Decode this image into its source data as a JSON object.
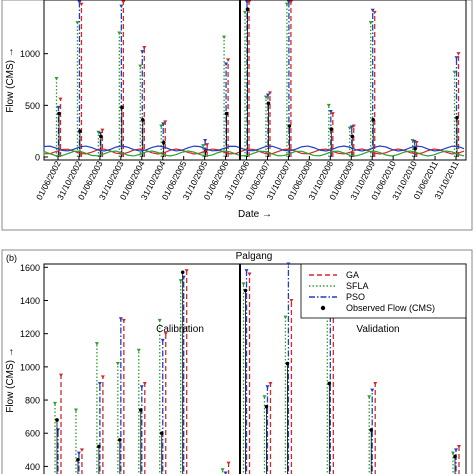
{
  "chart_data": [
    {
      "panel_label": "",
      "title": "",
      "type": "line",
      "xlabel": "Date",
      "ylabel": "Flow (CMS)",
      "arrow_glyph": "→",
      "ylim": [
        0,
        1500
      ],
      "yticks": [
        "0",
        "500",
        "1000"
      ],
      "xticks": [
        "01/06/2002",
        "31/10/2002",
        "01/06/2003",
        "31/10/2003",
        "01/06/2004",
        "31/10/2004",
        "01/06/2005",
        "31/10/2005",
        "01/06/2006",
        "31/10/2006",
        "01/06/2007",
        "31/10/2007",
        "01/06/2008",
        "31/10/2008",
        "01/06/2009",
        "31/10/2009",
        "01/06/2010",
        "31/10/2010",
        "01/06/2011",
        "31/10/2011"
      ],
      "divider_x": "31/10/2006",
      "grid": false,
      "regions": [],
      "legend": [],
      "peaks": [
        {
          "x": "01/06/2002",
          "GA": 560,
          "SFLA": 760,
          "PSO": 480,
          "Observed": 420
        },
        {
          "x": "31/10/2002",
          "GA": 1480,
          "SFLA": 1300,
          "PSO": 1500,
          "Observed": 250
        },
        {
          "x": "01/06/2003",
          "GA": 260,
          "SFLA": 240,
          "PSO": 230,
          "Observed": 200
        },
        {
          "x": "31/10/2003",
          "GA": 1500,
          "SFLA": 1200,
          "PSO": 1460,
          "Observed": 480
        },
        {
          "x": "01/06/2004",
          "GA": 1060,
          "SFLA": 880,
          "PSO": 1020,
          "Observed": 360
        },
        {
          "x": "31/10/2004",
          "GA": 340,
          "SFLA": 300,
          "PSO": 320,
          "Observed": 140
        },
        {
          "x": "31/10/2005",
          "GA": 120,
          "SFLA": 110,
          "PSO": 160,
          "Observed": 60
        },
        {
          "x": "01/06/2006",
          "GA": 940,
          "SFLA": 1160,
          "PSO": 900,
          "Observed": 420
        },
        {
          "x": "31/10/2006",
          "GA": 1500,
          "SFLA": 1400,
          "PSO": 1500,
          "Observed": 1430
        },
        {
          "x": "01/06/2007",
          "GA": 620,
          "SFLA": 580,
          "PSO": 600,
          "Observed": 520
        },
        {
          "x": "31/10/2007",
          "GA": 1500,
          "SFLA": 1480,
          "PSO": 1500,
          "Observed": 300
        },
        {
          "x": "31/10/2008",
          "GA": 420,
          "SFLA": 500,
          "PSO": 440,
          "Observed": 270
        },
        {
          "x": "01/06/2009",
          "GA": 300,
          "SFLA": 280,
          "PSO": 290,
          "Observed": 200
        },
        {
          "x": "31/10/2009",
          "GA": 1400,
          "SFLA": 1300,
          "PSO": 1420,
          "Observed": 360
        },
        {
          "x": "31/10/2010",
          "GA": 140,
          "SFLA": 160,
          "PSO": 150,
          "Observed": 80
        },
        {
          "x": "31/10/2011",
          "GA": 1000,
          "SFLA": 820,
          "PSO": 960,
          "Observed": 380
        }
      ]
    },
    {
      "panel_label": "(b)",
      "title": "Palgang",
      "type": "line",
      "xlabel": "",
      "ylabel": "Flow (CMS)",
      "arrow_glyph": "→",
      "ylim": [
        300,
        1620
      ],
      "yticks": [
        "400",
        "600",
        "800",
        "1000",
        "1200",
        "1400",
        "1600"
      ],
      "xticks": [],
      "divider_x": "31/10/2006",
      "grid": false,
      "regions": [
        "Calibration",
        "Validation"
      ],
      "legend": [
        {
          "name": "GA",
          "color": "#d62728",
          "style": "dash"
        },
        {
          "name": "SFLA",
          "color": "#2ca02c",
          "style": "dot"
        },
        {
          "name": "PSO",
          "color": "#1f3fbf",
          "style": "dashdot"
        },
        {
          "name": "Observed Flow (CMS)",
          "color": "#000000",
          "style": "marker"
        }
      ],
      "peaks": [
        {
          "x": "01/06/2002",
          "GA": 950,
          "SFLA": 780,
          "PSO": 620,
          "Observed": 680
        },
        {
          "x": "31/10/2002",
          "GA": 500,
          "SFLA": 740,
          "PSO": 480,
          "Observed": 440
        },
        {
          "x": "01/06/2003",
          "GA": 940,
          "SFLA": 1140,
          "PSO": 900,
          "Observed": 520
        },
        {
          "x": "31/10/2003",
          "GA": 1280,
          "SFLA": 1020,
          "PSO": 1290,
          "Observed": 560
        },
        {
          "x": "01/06/2004",
          "GA": 900,
          "SFLA": 1100,
          "PSO": 880,
          "Observed": 740
        },
        {
          "x": "31/10/2004",
          "GA": 1200,
          "SFLA": 1280,
          "PSO": 1160,
          "Observed": 600
        },
        {
          "x": "01/06/2005",
          "GA": 1580,
          "SFLA": 1520,
          "PSO": 1540,
          "Observed": 1570
        },
        {
          "x": "01/06/2006",
          "GA": 420,
          "SFLA": 380,
          "PSO": 360,
          "Observed": 340
        },
        {
          "x": "31/10/2006",
          "GA": 1560,
          "SFLA": 1500,
          "PSO": 1580,
          "Observed": 1460
        },
        {
          "x": "01/06/2007",
          "GA": 900,
          "SFLA": 820,
          "PSO": 880,
          "Observed": 760
        },
        {
          "x": "31/10/2007",
          "GA": 1400,
          "SFLA": 1300,
          "PSO": 1620,
          "Observed": 1020
        },
        {
          "x": "31/10/2008",
          "GA": 1460,
          "SFLA": 1360,
          "PSO": 1440,
          "Observed": 900
        },
        {
          "x": "31/10/2009",
          "GA": 900,
          "SFLA": 820,
          "PSO": 860,
          "Observed": 620
        },
        {
          "x": "31/10/2011",
          "GA": 520,
          "SFLA": 480,
          "PSO": 500,
          "Observed": 460
        }
      ]
    }
  ]
}
